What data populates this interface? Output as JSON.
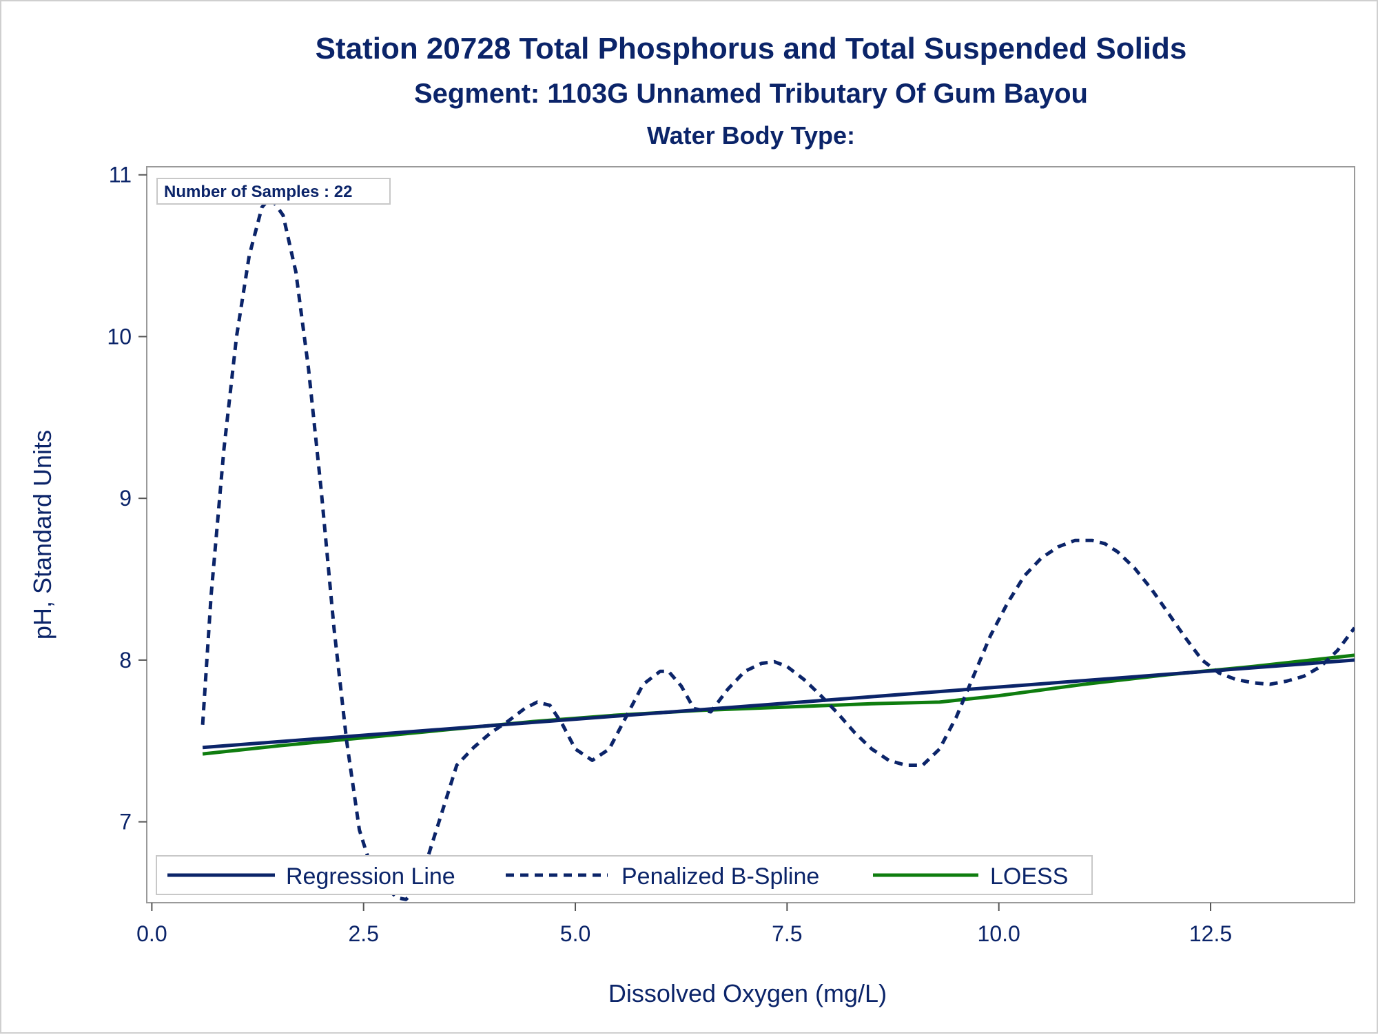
{
  "chart_data": {
    "type": "line",
    "title": "Station 20728  Total Phosphorus and Total Suspended Solids",
    "subtitle": "Segment: 1103G  Unnamed Tributary Of Gum Bayou",
    "subtitle2": "Water Body Type:",
    "xlabel": "Dissolved Oxygen (mg/L)",
    "ylabel": "pH, Standard Units",
    "xlim": [
      -0.06,
      14.2
    ],
    "ylim": [
      6.5,
      11.05
    ],
    "x_ticks": [
      "0.0",
      "2.5",
      "5.0",
      "7.5",
      "10.0",
      "12.5"
    ],
    "x_tick_values": [
      0,
      2.5,
      5,
      7.5,
      10,
      12.5
    ],
    "y_ticks": [
      "7",
      "8",
      "9",
      "10",
      "11"
    ],
    "y_tick_values": [
      7,
      8,
      9,
      10,
      11
    ],
    "inset_label": "Number of Samples : 22",
    "legend_position": "bottom-inside",
    "grid": false,
    "series": [
      {
        "name": "Regression Line",
        "style": "solid",
        "color": "#0b2469",
        "x": [
          0.6,
          14.2
        ],
        "y": [
          7.46,
          8.0
        ]
      },
      {
        "name": "Penalized B-Spline",
        "style": "dashed",
        "color": "#0b2469",
        "x": [
          0.6,
          0.7,
          0.85,
          1.0,
          1.15,
          1.3,
          1.4,
          1.55,
          1.7,
          1.85,
          2.0,
          2.15,
          2.3,
          2.45,
          2.6,
          2.75,
          2.9,
          3.0,
          3.15,
          3.3,
          3.45,
          3.6,
          3.8,
          4.0,
          4.2,
          4.4,
          4.55,
          4.7,
          4.85,
          5.0,
          5.2,
          5.4,
          5.6,
          5.8,
          6.0,
          6.1,
          6.25,
          6.4,
          6.6,
          6.8,
          7.0,
          7.2,
          7.35,
          7.5,
          7.7,
          7.9,
          8.1,
          8.3,
          8.5,
          8.7,
          8.9,
          9.1,
          9.3,
          9.5,
          9.7,
          9.9,
          10.1,
          10.3,
          10.5,
          10.7,
          10.9,
          11.1,
          11.25,
          11.4,
          11.6,
          11.8,
          12.0,
          12.2,
          12.4,
          12.6,
          12.8,
          13.0,
          13.2,
          13.4,
          13.6,
          13.8,
          14.0,
          14.2
        ],
        "y": [
          7.6,
          8.4,
          9.3,
          10.0,
          10.5,
          10.8,
          10.86,
          10.75,
          10.4,
          9.8,
          9.05,
          8.2,
          7.5,
          6.95,
          6.7,
          6.6,
          6.53,
          6.52,
          6.6,
          6.85,
          7.1,
          7.35,
          7.46,
          7.55,
          7.62,
          7.7,
          7.74,
          7.72,
          7.6,
          7.45,
          7.38,
          7.45,
          7.65,
          7.85,
          7.93,
          7.93,
          7.84,
          7.7,
          7.68,
          7.82,
          7.93,
          7.98,
          7.99,
          7.96,
          7.88,
          7.78,
          7.67,
          7.55,
          7.45,
          7.38,
          7.35,
          7.35,
          7.45,
          7.65,
          7.9,
          8.15,
          8.35,
          8.52,
          8.63,
          8.7,
          8.74,
          8.74,
          8.72,
          8.67,
          8.57,
          8.44,
          8.29,
          8.14,
          8.0,
          7.92,
          7.88,
          7.86,
          7.85,
          7.87,
          7.9,
          7.96,
          8.06,
          8.2
        ]
      },
      {
        "name": "LOESS",
        "style": "solid",
        "color": "#0f7d0f",
        "x": [
          0.6,
          1.5,
          2.5,
          3.5,
          4.5,
          5.5,
          6.5,
          7.5,
          8.5,
          9.3,
          10.0,
          11.0,
          12.0,
          13.0,
          14.2
        ],
        "y": [
          7.42,
          7.47,
          7.52,
          7.57,
          7.62,
          7.66,
          7.69,
          7.71,
          7.73,
          7.74,
          7.78,
          7.85,
          7.91,
          7.96,
          8.03
        ]
      }
    ]
  }
}
